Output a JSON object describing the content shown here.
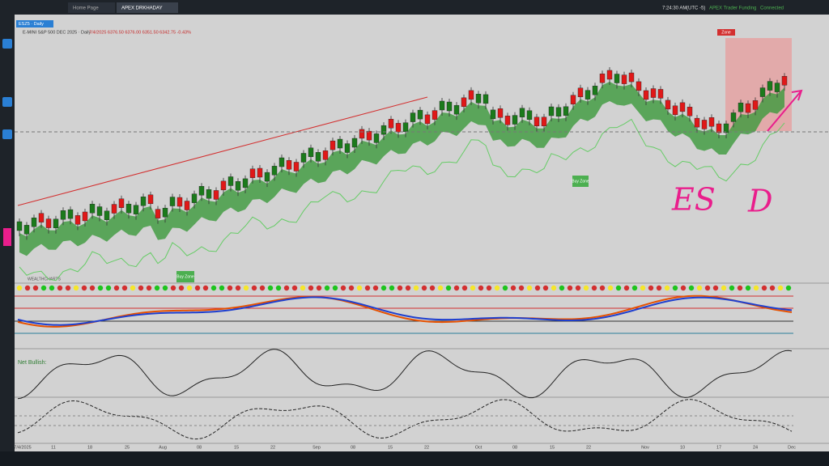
{
  "top_bar": {
    "tabs": [
      "Home Page",
      "APEX DRKHADAY"
    ],
    "time": "7:24:30 AM",
    "timezone": "(UTC -5)",
    "account": "APEX Trader Funding",
    "status": "Connected"
  },
  "chart": {
    "symbol": "ESZ5 · Daily",
    "title": "E-MINI S&P 500 DEC 2025 · Daily",
    "ohlc": "7/4/2025  6376.50  6376.00  6351.50  6342.75  -0.43%",
    "zones": [
      "Zone",
      "Buy Zone",
      "Buy Zone"
    ],
    "indicator_brand": "WEALTHCHARTS",
    "net_label": "Net Bullish:",
    "annotations": [
      "ES",
      "D"
    ],
    "x_labels": [
      "7/4/2025",
      "11",
      "18",
      "25",
      "Aug",
      "08",
      "15",
      "22",
      "Sep",
      "08",
      "15",
      "22",
      "Oct",
      "08",
      "15",
      "22",
      "Nov",
      "10",
      "17",
      "24",
      "Dec"
    ]
  }
}
